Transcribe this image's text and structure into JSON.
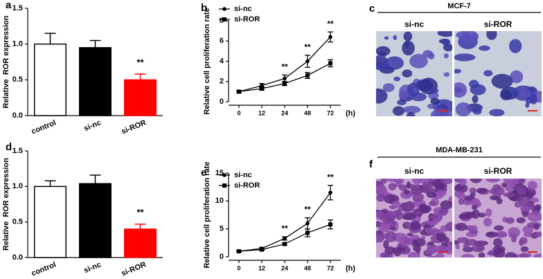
{
  "chart_data": [
    {
      "type": "bar",
      "panel_label": "a",
      "ylabel": "Relative  ROR expression",
      "categories": [
        "control",
        "si-nc",
        "si-ROR"
      ],
      "values": [
        1.0,
        0.95,
        0.5
      ],
      "errors": [
        0.15,
        0.1,
        0.08
      ],
      "colors": [
        "#ffffff",
        "#000000",
        "#ff0000"
      ],
      "ylim": [
        0,
        1.5
      ],
      "yticks": [
        {
          "value": 0,
          "label": "0.0"
        },
        {
          "value": 0.5,
          "label": "0.5"
        },
        {
          "value": 1.0,
          "label": "1.0"
        },
        {
          "value": 1.5,
          "label": "1.5"
        }
      ],
      "annotations": [
        {
          "category": "si-ROR",
          "text": "**"
        }
      ]
    },
    {
      "type": "line",
      "panel_label": "b",
      "ylabel": "Relative cell proliferation rate",
      "xlabel": "(h)",
      "categories": [
        "0",
        "12",
        "24",
        "48",
        "72"
      ],
      "series": [
        {
          "name": "si-nc",
          "color": "#000000",
          "marker": "circle",
          "values": [
            1.0,
            1.6,
            2.3,
            4.0,
            6.4
          ],
          "errors": [
            0.1,
            0.2,
            0.35,
            0.6,
            0.5
          ]
        },
        {
          "name": "si-ROR",
          "color": "#000000",
          "marker": "square",
          "values": [
            1.0,
            1.3,
            1.8,
            2.6,
            3.8
          ],
          "errors": [
            0.1,
            0.15,
            0.2,
            0.3,
            0.35
          ]
        }
      ],
      "ylim": [
        0,
        8
      ],
      "yticks": [
        0,
        2,
        4,
        6,
        8
      ],
      "annotations": [
        {
          "category": "24",
          "text": "**"
        },
        {
          "category": "48",
          "text": "**"
        },
        {
          "category": "72",
          "text": "**"
        }
      ]
    },
    {
      "type": "bar",
      "panel_label": "d",
      "ylabel": "Relative  ROR expression",
      "categories": [
        "control",
        "si-nc",
        "si-ROR"
      ],
      "values": [
        1.0,
        1.04,
        0.4
      ],
      "errors": [
        0.08,
        0.12,
        0.07
      ],
      "colors": [
        "#ffffff",
        "#000000",
        "#ff0000"
      ],
      "ylim": [
        0,
        1.5
      ],
      "yticks": [
        {
          "value": 0,
          "label": "0.0"
        },
        {
          "value": 0.5,
          "label": "0.5"
        },
        {
          "value": 1.0,
          "label": "1.0"
        },
        {
          "value": 1.5,
          "label": "1.5"
        }
      ],
      "annotations": [
        {
          "category": "si-ROR",
          "text": "**"
        }
      ]
    },
    {
      "type": "line",
      "panel_label": "e",
      "ylabel": "Relative cell proliferation rate",
      "xlabel": "(h)",
      "categories": [
        "0",
        "12",
        "24",
        "48",
        "72"
      ],
      "series": [
        {
          "name": "si-nc",
          "color": "#000000",
          "marker": "circle",
          "values": [
            1.0,
            1.5,
            3.3,
            6.0,
            11.5
          ],
          "errors": [
            0.1,
            0.2,
            0.3,
            1.0,
            1.3
          ]
        },
        {
          "name": "si-ROR",
          "color": "#000000",
          "marker": "square",
          "values": [
            1.0,
            1.3,
            2.3,
            4.3,
            5.8
          ],
          "errors": [
            0.1,
            0.15,
            0.2,
            0.7,
            0.8
          ]
        }
      ],
      "ylim": [
        0,
        15
      ],
      "yticks": [
        0,
        5,
        10,
        15
      ],
      "annotations": [
        {
          "category": "24",
          "text": "**"
        },
        {
          "category": "48",
          "text": "**"
        },
        {
          "category": "72",
          "text": "**"
        }
      ]
    }
  ],
  "image_panels": [
    {
      "panel_label": "c",
      "title": "MCF-7",
      "labels": [
        "si-nc",
        "si-ROR"
      ]
    },
    {
      "panel_label": "f",
      "title": "MDA-MB-231",
      "labels": [
        "si-nc",
        "si-ROR"
      ]
    }
  ]
}
